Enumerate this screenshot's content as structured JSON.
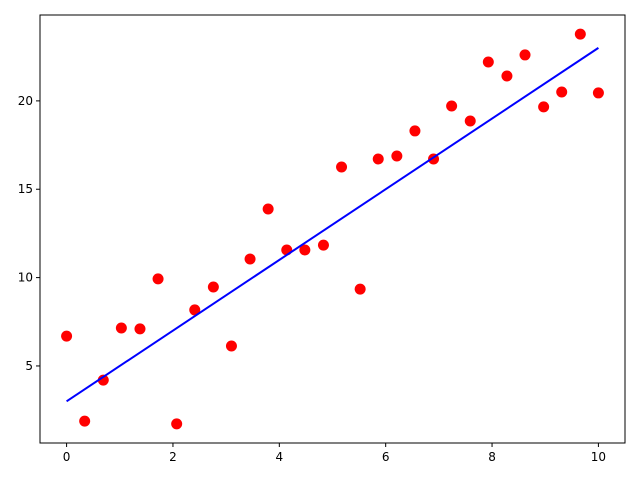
{
  "chart_data": {
    "type": "scatter",
    "series": [
      {
        "mode": "markers",
        "color": "#ff0000",
        "x": [
          0,
          0.34,
          0.69,
          1.03,
          1.38,
          1.72,
          2.07,
          2.41,
          2.76,
          3.1,
          3.45,
          3.79,
          4.14,
          4.48,
          4.83,
          5.17,
          5.52,
          5.86,
          6.21,
          6.55,
          6.9,
          7.24,
          7.59,
          7.93,
          8.28,
          8.62,
          8.97,
          9.31,
          9.66,
          10
        ],
        "values": [
          6.69,
          1.88,
          4.2,
          7.15,
          7.1,
          9.93,
          1.72,
          8.17,
          9.47,
          6.13,
          11.05,
          13.88,
          11.56,
          11.56,
          11.84,
          16.26,
          9.35,
          16.71,
          16.88,
          18.3,
          16.71,
          19.71,
          18.86,
          22.2,
          21.41,
          22.6,
          19.66,
          20.5,
          23.78,
          20.45
        ]
      },
      {
        "mode": "line",
        "color": "#0000ff",
        "x": [
          0,
          10
        ],
        "values": [
          3,
          23
        ]
      }
    ],
    "xlim": [
      -0.5,
      10.5
    ],
    "ylim": [
      0.64,
      24.86
    ],
    "xticks": [
      0,
      2,
      4,
      6,
      8,
      10
    ],
    "yticks": [
      5,
      10,
      15,
      20
    ],
    "grid": false
  }
}
